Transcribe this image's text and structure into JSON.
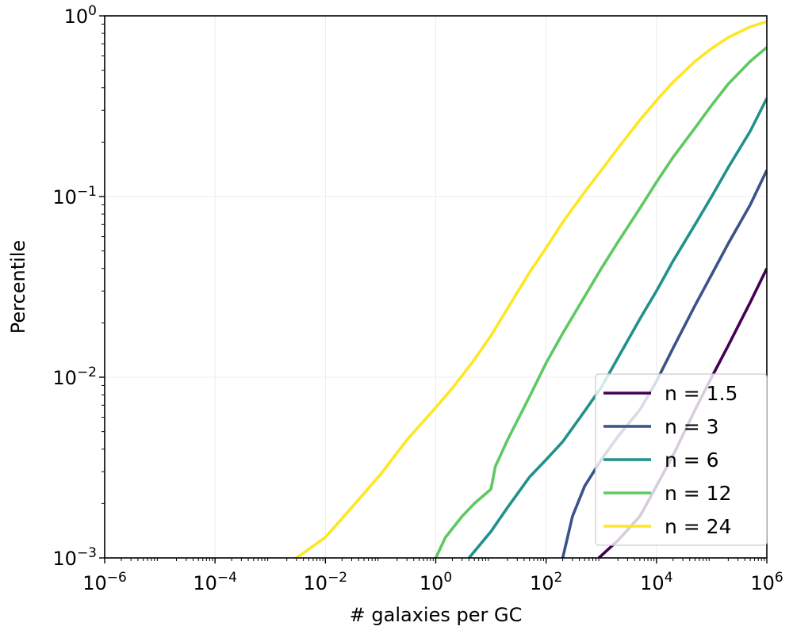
{
  "chart_data": {
    "type": "line",
    "title": "",
    "xlabel": "# galaxies per GC",
    "ylabel": "Percentile",
    "xscale": "log",
    "yscale": "log",
    "xlim": [
      1e-06,
      1000000.0
    ],
    "ylim": [
      0.001,
      1
    ],
    "grid": true,
    "legend_position": "lower-right",
    "x_ticks": [
      {
        "base": "10",
        "exp": "−6"
      },
      {
        "base": "10",
        "exp": "−4"
      },
      {
        "base": "10",
        "exp": "−2"
      },
      {
        "base": "10",
        "exp": "0"
      },
      {
        "base": "10",
        "exp": "2"
      },
      {
        "base": "10",
        "exp": "4"
      },
      {
        "base": "10",
        "exp": "6"
      }
    ],
    "y_ticks": [
      {
        "base": "10",
        "exp": "−3"
      },
      {
        "base": "10",
        "exp": "−2"
      },
      {
        "base": "10",
        "exp": "−1"
      },
      {
        "base": "10",
        "exp": "0"
      }
    ],
    "series": [
      {
        "name": "n = 1.5",
        "color": "#440154",
        "x": [
          900,
          2000,
          5000,
          10000,
          20000,
          50000,
          100000,
          200000,
          500000,
          1000000
        ],
        "y": [
          0.001,
          0.00125,
          0.0017,
          0.0025,
          0.0037,
          0.0066,
          0.01,
          0.015,
          0.026,
          0.04
        ]
      },
      {
        "name": "n = 3",
        "color": "#3b528b",
        "x": [
          200,
          300,
          500,
          1000,
          2000,
          5000,
          10000,
          20000,
          50000,
          100000,
          200000,
          500000,
          1000000
        ],
        "y": [
          0.001,
          0.0017,
          0.0025,
          0.0035,
          0.0047,
          0.0066,
          0.0095,
          0.0145,
          0.025,
          0.037,
          0.055,
          0.09,
          0.14
        ]
      },
      {
        "name": "n = 6",
        "color": "#21918c",
        "x": [
          4,
          10,
          20,
          50,
          100,
          200,
          500,
          1000,
          2000,
          5000,
          10000,
          20000,
          50000,
          100000,
          200000,
          500000,
          1000000
        ],
        "y": [
          0.001,
          0.0014,
          0.0019,
          0.0028,
          0.0035,
          0.0044,
          0.0065,
          0.0088,
          0.0128,
          0.021,
          0.03,
          0.044,
          0.07,
          0.1,
          0.145,
          0.23,
          0.35
        ]
      },
      {
        "name": "n = 12",
        "color": "#5ec962",
        "x": [
          1,
          1.5,
          3,
          5,
          10,
          12,
          20,
          50,
          100,
          200,
          500,
          1000,
          2000,
          5000,
          10000,
          20000,
          50000,
          100000,
          200000,
          500000,
          1000000
        ],
        "y": [
          0.001,
          0.0013,
          0.0017,
          0.002,
          0.0024,
          0.0032,
          0.0045,
          0.0078,
          0.012,
          0.0175,
          0.028,
          0.04,
          0.056,
          0.086,
          0.12,
          0.165,
          0.24,
          0.32,
          0.42,
          0.56,
          0.67
        ]
      },
      {
        "name": "n = 24",
        "color": "#fde725",
        "x": [
          0.003,
          0.01,
          0.03,
          0.1,
          0.3,
          1,
          2,
          5,
          10,
          20,
          50,
          100,
          200,
          500,
          1000,
          2000,
          5000,
          10000,
          20000,
          50000,
          100000,
          200000,
          500000,
          1000000
        ],
        "y": [
          0.001,
          0.0013,
          0.0019,
          0.0029,
          0.0045,
          0.0068,
          0.0087,
          0.0125,
          0.017,
          0.024,
          0.038,
          0.052,
          0.072,
          0.106,
          0.14,
          0.185,
          0.265,
          0.34,
          0.43,
          0.56,
          0.66,
          0.76,
          0.87,
          0.93
        ]
      }
    ]
  }
}
